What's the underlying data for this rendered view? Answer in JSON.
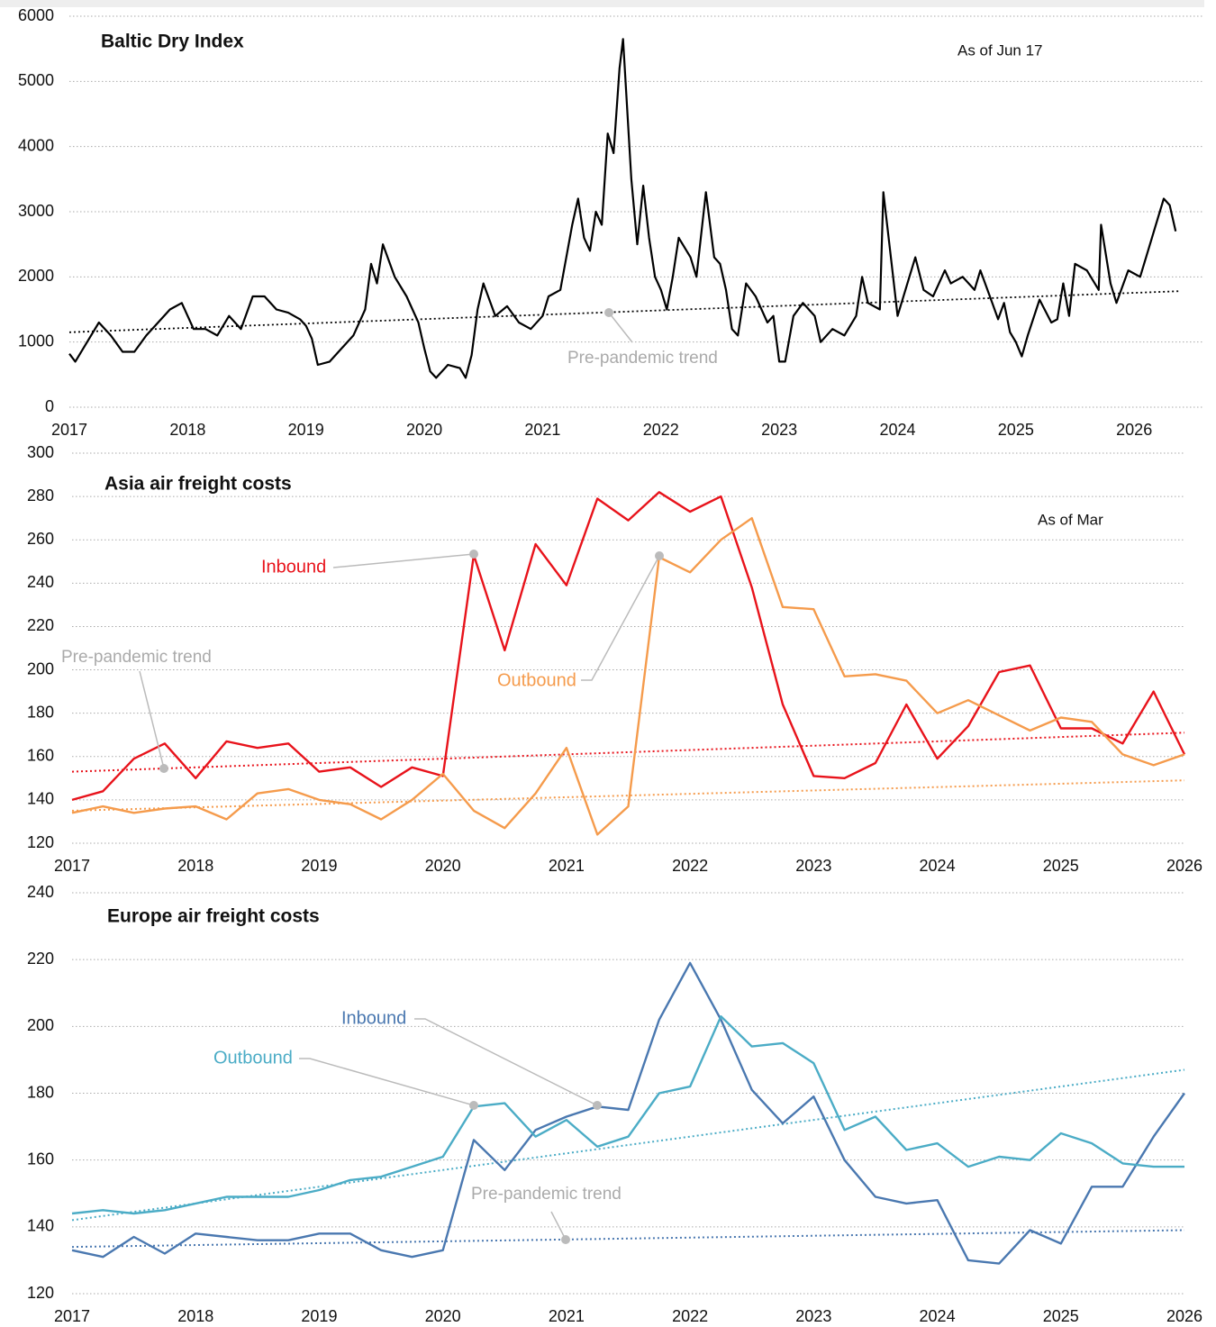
{
  "chart_data": [
    {
      "type": "line",
      "title": "Baltic Dry Index",
      "annotation": "As of Jun 17",
      "color": "#000000",
      "x": [
        2017.0,
        2017.05,
        2017.15,
        2017.25,
        2017.35,
        2017.45,
        2017.55,
        2017.65,
        2017.75,
        2017.85,
        2017.95,
        2018.05,
        2018.15,
        2018.25,
        2018.35,
        2018.45,
        2018.55,
        2018.65,
        2018.75,
        2018.85,
        2018.95,
        2019.0,
        2019.05,
        2019.1,
        2019.2,
        2019.3,
        2019.4,
        2019.5,
        2019.55,
        2019.6,
        2019.65,
        2019.75,
        2019.85,
        2019.95,
        2020.0,
        2020.05,
        2020.1,
        2020.2,
        2020.3,
        2020.35,
        2020.4,
        2020.45,
        2020.5,
        2020.6,
        2020.7,
        2020.8,
        2020.9,
        2021.0,
        2021.05,
        2021.15,
        2021.25,
        2021.3,
        2021.35,
        2021.4,
        2021.45,
        2021.5,
        2021.55,
        2021.6,
        2021.65,
        2021.68,
        2021.75,
        2021.8,
        2021.85,
        2021.9,
        2021.95,
        2022.0,
        2022.05,
        2022.1,
        2022.15,
        2022.25,
        2022.3,
        2022.38,
        2022.45,
        2022.5,
        2022.55,
        2022.6,
        2022.65,
        2022.72,
        2022.8,
        2022.9,
        2022.95,
        2023.0,
        2023.05,
        2023.12,
        2023.2,
        2023.3,
        2023.35,
        2023.45,
        2023.55,
        2023.65,
        2023.7,
        2023.75,
        2023.85,
        2023.88,
        2023.95,
        2024.0,
        2024.1,
        2024.15,
        2024.22,
        2024.3,
        2024.4,
        2024.45,
        2024.55,
        2024.65,
        2024.7,
        2024.8,
        2024.85,
        2024.9,
        2024.95,
        2025.0,
        2025.05,
        2025.1,
        2025.2,
        2025.3,
        2025.35,
        2025.4,
        2025.45,
        2025.5,
        2025.6,
        2025.7,
        2025.72,
        2025.8,
        2025.85,
        2025.95,
        2026.05,
        2026.15,
        2026.25,
        2026.3,
        2026.35
      ],
      "values": [
        820,
        700,
        1000,
        1300,
        1100,
        850,
        850,
        1100,
        1300,
        1500,
        1600,
        1200,
        1200,
        1100,
        1400,
        1200,
        1700,
        1700,
        1500,
        1450,
        1350,
        1250,
        1050,
        650,
        700,
        900,
        1100,
        1500,
        2200,
        1900,
        2500,
        2000,
        1700,
        1300,
        900,
        550,
        450,
        650,
        600,
        450,
        800,
        1500,
        1900,
        1400,
        1550,
        1300,
        1200,
        1400,
        1700,
        1800,
        2800,
        3200,
        2600,
        2400,
        3000,
        2800,
        4200,
        3900,
        5200,
        5650,
        3500,
        2500,
        3400,
        2600,
        2000,
        1800,
        1500,
        2000,
        2600,
        2300,
        2000,
        3300,
        2300,
        2200,
        1800,
        1200,
        1100,
        1900,
        1700,
        1300,
        1400,
        700,
        700,
        1400,
        1600,
        1400,
        1000,
        1200,
        1100,
        1400,
        2000,
        1600,
        1500,
        3300,
        2200,
        1400,
        2000,
        2300,
        1800,
        1700,
        2100,
        1900,
        2000,
        1800,
        2100,
        1600,
        1350,
        1600,
        1150,
        1000,
        780,
        1100,
        1650,
        1300,
        1350,
        1900,
        1400,
        2200,
        2100,
        1800,
        2800,
        1900,
        1600,
        2100,
        2000,
        2600,
        3200,
        3100,
        2700
      ],
      "trend": {
        "label": "Pre-pandemic trend",
        "x": [
          2017,
          2026.38
        ],
        "values": [
          1150,
          1780
        ]
      },
      "xlim": [
        2017,
        2026.6
      ],
      "xticks": [
        2017,
        2018,
        2019,
        2020,
        2021,
        2022,
        2023,
        2024,
        2025,
        2026
      ],
      "ylim": [
        0,
        6000
      ],
      "yticks": [
        0,
        1000,
        2000,
        3000,
        4000,
        5000,
        6000
      ],
      "grid": true
    },
    {
      "type": "line",
      "title": "Asia air freight costs",
      "annotation": "As of Mar",
      "trend_label": "Pre-pandemic trend",
      "x": [
        2017,
        2017.25,
        2017.5,
        2017.75,
        2018,
        2018.25,
        2018.5,
        2018.75,
        2019,
        2019.25,
        2019.5,
        2019.75,
        2020,
        2020.25,
        2020.5,
        2020.75,
        2021,
        2021.25,
        2021.5,
        2021.75,
        2022,
        2022.25,
        2022.5,
        2022.75,
        2023,
        2023.25,
        2023.5,
        2023.75,
        2024,
        2024.25,
        2024.5,
        2024.75,
        2025,
        2025.25,
        2025.5,
        2025.75,
        2026
      ],
      "trend_x": [
        2017,
        2026
      ],
      "series": [
        {
          "name": "Inbound",
          "color": "#e8131b",
          "values": [
            140,
            144,
            159,
            166,
            150,
            167,
            164,
            166,
            153,
            155,
            146,
            155,
            151,
            253,
            209,
            258,
            239,
            279,
            269,
            282,
            273,
            280,
            238,
            184,
            151,
            150,
            157,
            184,
            159,
            174,
            199,
            202,
            173,
            173,
            166,
            190,
            161
          ],
          "trend": [
            153,
            171
          ]
        },
        {
          "name": "Outbound",
          "color": "#f59b4c",
          "values": [
            134,
            137,
            134,
            136,
            137,
            131,
            143,
            145,
            140,
            138,
            131,
            140,
            152,
            135,
            127,
            143,
            164,
            124,
            137,
            252,
            245,
            260,
            270,
            229,
            228,
            197,
            198,
            195,
            180,
            186,
            179,
            172,
            178,
            176,
            161,
            156,
            161
          ],
          "trend": [
            135,
            149
          ]
        }
      ],
      "xlim": [
        2017,
        2026
      ],
      "xticks": [
        2017,
        2018,
        2019,
        2020,
        2021,
        2022,
        2023,
        2024,
        2025,
        2026
      ],
      "ylim": [
        120,
        300
      ],
      "yticks": [
        120,
        140,
        160,
        180,
        200,
        220,
        240,
        260,
        280,
        300
      ],
      "grid": true
    },
    {
      "type": "line",
      "title": "Europe air freight costs",
      "trend_label": "Pre-pandemic trend",
      "x": [
        2017,
        2017.25,
        2017.5,
        2017.75,
        2018,
        2018.25,
        2018.5,
        2018.75,
        2019,
        2019.25,
        2019.5,
        2019.75,
        2020,
        2020.25,
        2020.5,
        2020.75,
        2021,
        2021.25,
        2021.5,
        2021.75,
        2022,
        2022.25,
        2022.5,
        2022.75,
        2023,
        2023.25,
        2023.5,
        2023.75,
        2024,
        2024.25,
        2024.5,
        2024.75,
        2025,
        2025.25,
        2025.5,
        2025.75,
        2026
      ],
      "trend_x": [
        2017,
        2026
      ],
      "series": [
        {
          "name": "Inbound",
          "color": "#4a78b0",
          "values": [
            133,
            131,
            137,
            132,
            138,
            137,
            136,
            136,
            138,
            138,
            133,
            131,
            133,
            166,
            157,
            169,
            173,
            176,
            175,
            202,
            219,
            202,
            181,
            171,
            179,
            160,
            149,
            147,
            148,
            130,
            129,
            139,
            135,
            152,
            152,
            167,
            180
          ],
          "trend": [
            134,
            139
          ]
        },
        {
          "name": "Outbound",
          "color": "#4bacc6",
          "values": [
            144,
            145,
            144,
            145,
            147,
            149,
            149,
            149,
            151,
            154,
            155,
            158,
            161,
            176,
            177,
            167,
            172,
            164,
            167,
            180,
            182,
            203,
            194,
            195,
            189,
            169,
            173,
            163,
            165,
            158,
            161,
            160,
            168,
            165,
            159,
            158,
            158
          ],
          "trend": [
            142,
            187
          ]
        }
      ],
      "xlim": [
        2017,
        2026
      ],
      "xticks": [
        2017,
        2018,
        2019,
        2020,
        2021,
        2022,
        2023,
        2024,
        2025,
        2026
      ],
      "ylim": [
        120,
        240
      ],
      "yticks": [
        120,
        140,
        160,
        180,
        200,
        220,
        240
      ],
      "grid": true
    }
  ]
}
